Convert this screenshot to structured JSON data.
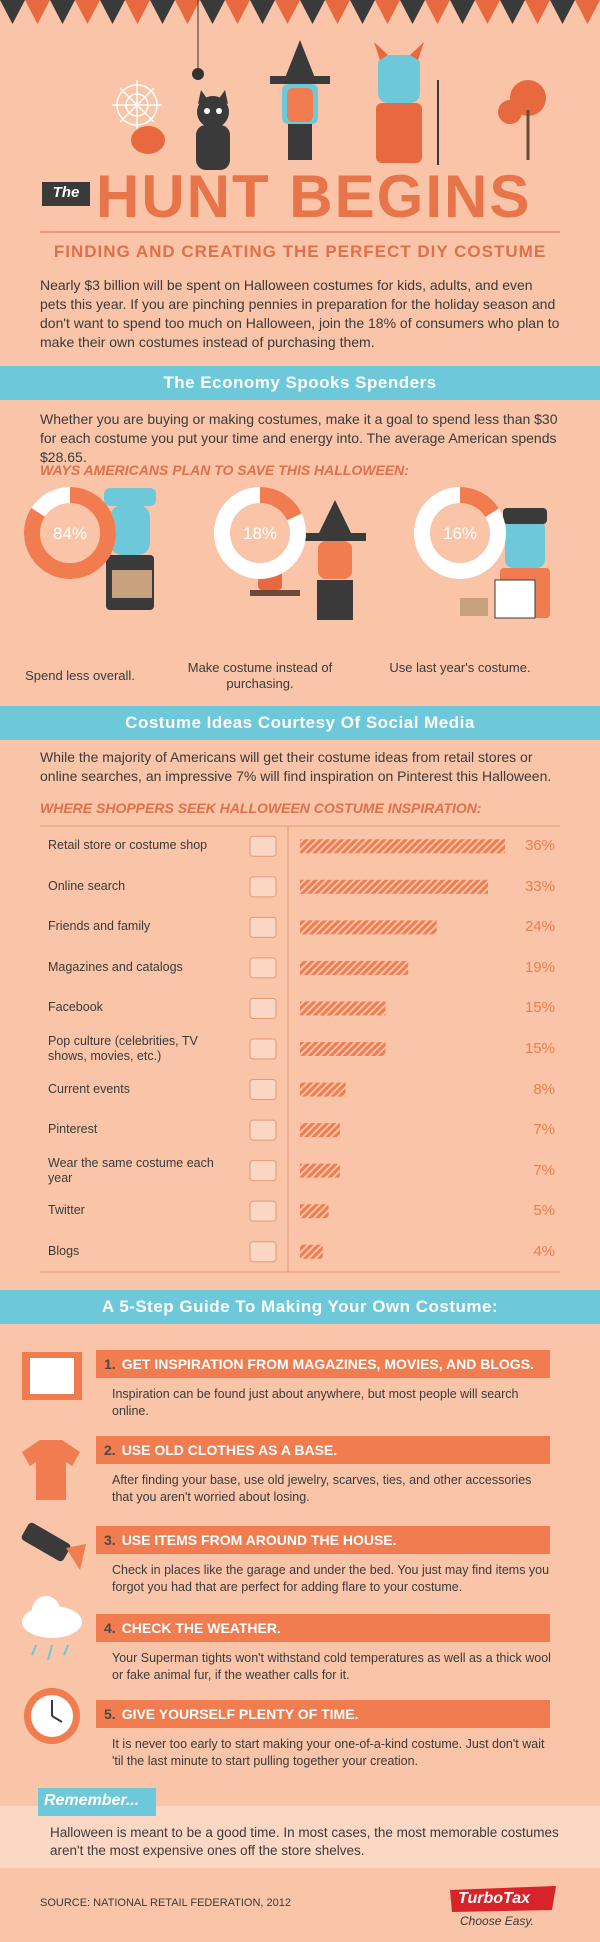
{
  "header": {
    "title_small": "The",
    "title": "HUNT BEGINS",
    "subtitle": "FINDING AND CREATING THE PERFECT DIY COSTUME",
    "intro": "Nearly $3 billion will be spent on Halloween costumes for kids, adults, and even pets this year. If you are pinching pennies in preparation for the holiday season and don't want to spend too much on Halloween, join the 18% of consumers who plan to make their own costumes instead of purchasing them."
  },
  "economy": {
    "heading": "The Economy Spooks Spenders",
    "text": "Whether you are buying or making costumes, make it a goal to spend less than $30 for each costume you put your time and energy into. The average American spends $28.65."
  },
  "social": {
    "heading": "Costume Ideas Courtesy Of Social Media",
    "text": "While the majority of Americans will get their costume ideas from retail stores or online searches, an impressive 7% will find inspiration on Pinterest this Halloween."
  },
  "chart_data": [
    {
      "type": "donut",
      "title": "WAYS AMERICANS PLAN TO SAVE THIS HALLOWEEN:",
      "categories": [
        "Spend less overall.",
        "Make costume instead of purchasing.",
        "Use last year's costume."
      ],
      "values": [
        84,
        18,
        16
      ],
      "value_labels": [
        "84%",
        "18%",
        "16%"
      ],
      "color": "#f07c4f"
    },
    {
      "type": "bar",
      "title": "WHERE SHOPPERS SEEK HALLOWEEN COSTUME INSPIRATION:",
      "categories": [
        "Retail store or costume shop",
        "Online search",
        "Friends and family",
        "Magazines and catalogs",
        "Facebook",
        "Pop culture (celebrities, TV shows, movies, etc.)",
        "Current events",
        "Pinterest",
        "Wear the same costume each year",
        "Twitter",
        "Blogs"
      ],
      "values": [
        36,
        33,
        24,
        19,
        15,
        15,
        8,
        7,
        7,
        5,
        4
      ],
      "value_labels": [
        "36%",
        "33%",
        "24%",
        "19%",
        "15%",
        "15%",
        "8%",
        "7%",
        "7%",
        "5%",
        "4%"
      ],
      "color": "#f07c4f"
    }
  ],
  "guide": {
    "heading": "A 5-Step Guide To Making Your Own Costume:",
    "steps": [
      {
        "number": "1.",
        "title": "GET INSPIRATION FROM MAGAZINES, MOVIES, AND BLOGS.",
        "text": "Inspiration can be found just about anywhere, but most people will search online."
      },
      {
        "number": "2.",
        "title": "USE OLD CLOTHES AS A BASE.",
        "text": "After finding your base, use old jewelry, scarves, ties, and other accessories that you aren't worried about losing."
      },
      {
        "number": "3.",
        "title": "USE ITEMS FROM AROUND THE HOUSE.",
        "text": "Check in places like the garage and under the bed. You just may find items you forgot you had that are perfect for adding flare to your costume."
      },
      {
        "number": "4.",
        "title": "CHECK THE WEATHER.",
        "text": "Your Superman tights won't withstand cold temperatures as well as a thick wool or fake animal fur, if the weather calls for it."
      },
      {
        "number": "5.",
        "title": "GIVE YOURSELF PLENTY OF TIME.",
        "text": "It is never too early to start making your one-of-a-kind costume. Just don't wait 'til the last minute to start pulling together your creation."
      }
    ]
  },
  "remember": {
    "heading": "Remember...",
    "text": "Halloween is meant to be a good time. In most cases, the most memorable costumes aren't the most expensive ones off the store shelves."
  },
  "footer": {
    "source": "SOURCE: NATIONAL RETAIL FEDERATION, 2012",
    "logo": "TurboTax",
    "tagline": "Choose Easy."
  }
}
